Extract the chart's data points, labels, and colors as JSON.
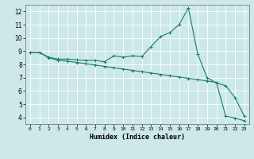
{
  "xlabel": "Humidex (Indice chaleur)",
  "background_color": "#cce8e8",
  "grid_color": "#ffffff",
  "line_color": "#1a7a6e",
  "xlim": [
    -0.5,
    23.5
  ],
  "ylim": [
    3.5,
    12.5
  ],
  "xticks": [
    0,
    1,
    2,
    3,
    4,
    5,
    6,
    7,
    8,
    9,
    10,
    11,
    12,
    13,
    14,
    15,
    16,
    17,
    18,
    19,
    20,
    21,
    22,
    23
  ],
  "yticks": [
    4,
    5,
    6,
    7,
    8,
    9,
    10,
    11,
    12
  ],
  "line1_x": [
    0,
    1,
    2,
    3,
    4,
    5,
    6,
    7,
    8,
    9,
    10,
    11,
    12,
    13,
    14,
    15,
    16,
    17,
    18,
    19,
    20,
    21,
    22,
    23
  ],
  "line1_y": [
    8.9,
    8.9,
    8.55,
    8.4,
    8.4,
    8.35,
    8.3,
    8.3,
    8.2,
    8.65,
    8.55,
    8.65,
    8.6,
    9.35,
    10.1,
    10.4,
    11.0,
    12.25,
    8.8,
    7.0,
    6.6,
    6.4,
    5.5,
    4.1
  ],
  "line2_x": [
    0,
    1,
    2,
    3,
    4,
    5,
    6,
    7,
    8,
    9,
    10,
    11,
    12,
    13,
    14,
    15,
    16,
    17,
    18,
    19,
    20,
    21,
    22,
    23
  ],
  "line2_y": [
    8.9,
    8.9,
    8.5,
    8.3,
    8.25,
    8.15,
    8.05,
    7.95,
    7.85,
    7.75,
    7.65,
    7.55,
    7.45,
    7.35,
    7.25,
    7.15,
    7.05,
    6.95,
    6.85,
    6.75,
    6.65,
    4.1,
    3.95,
    3.75
  ]
}
